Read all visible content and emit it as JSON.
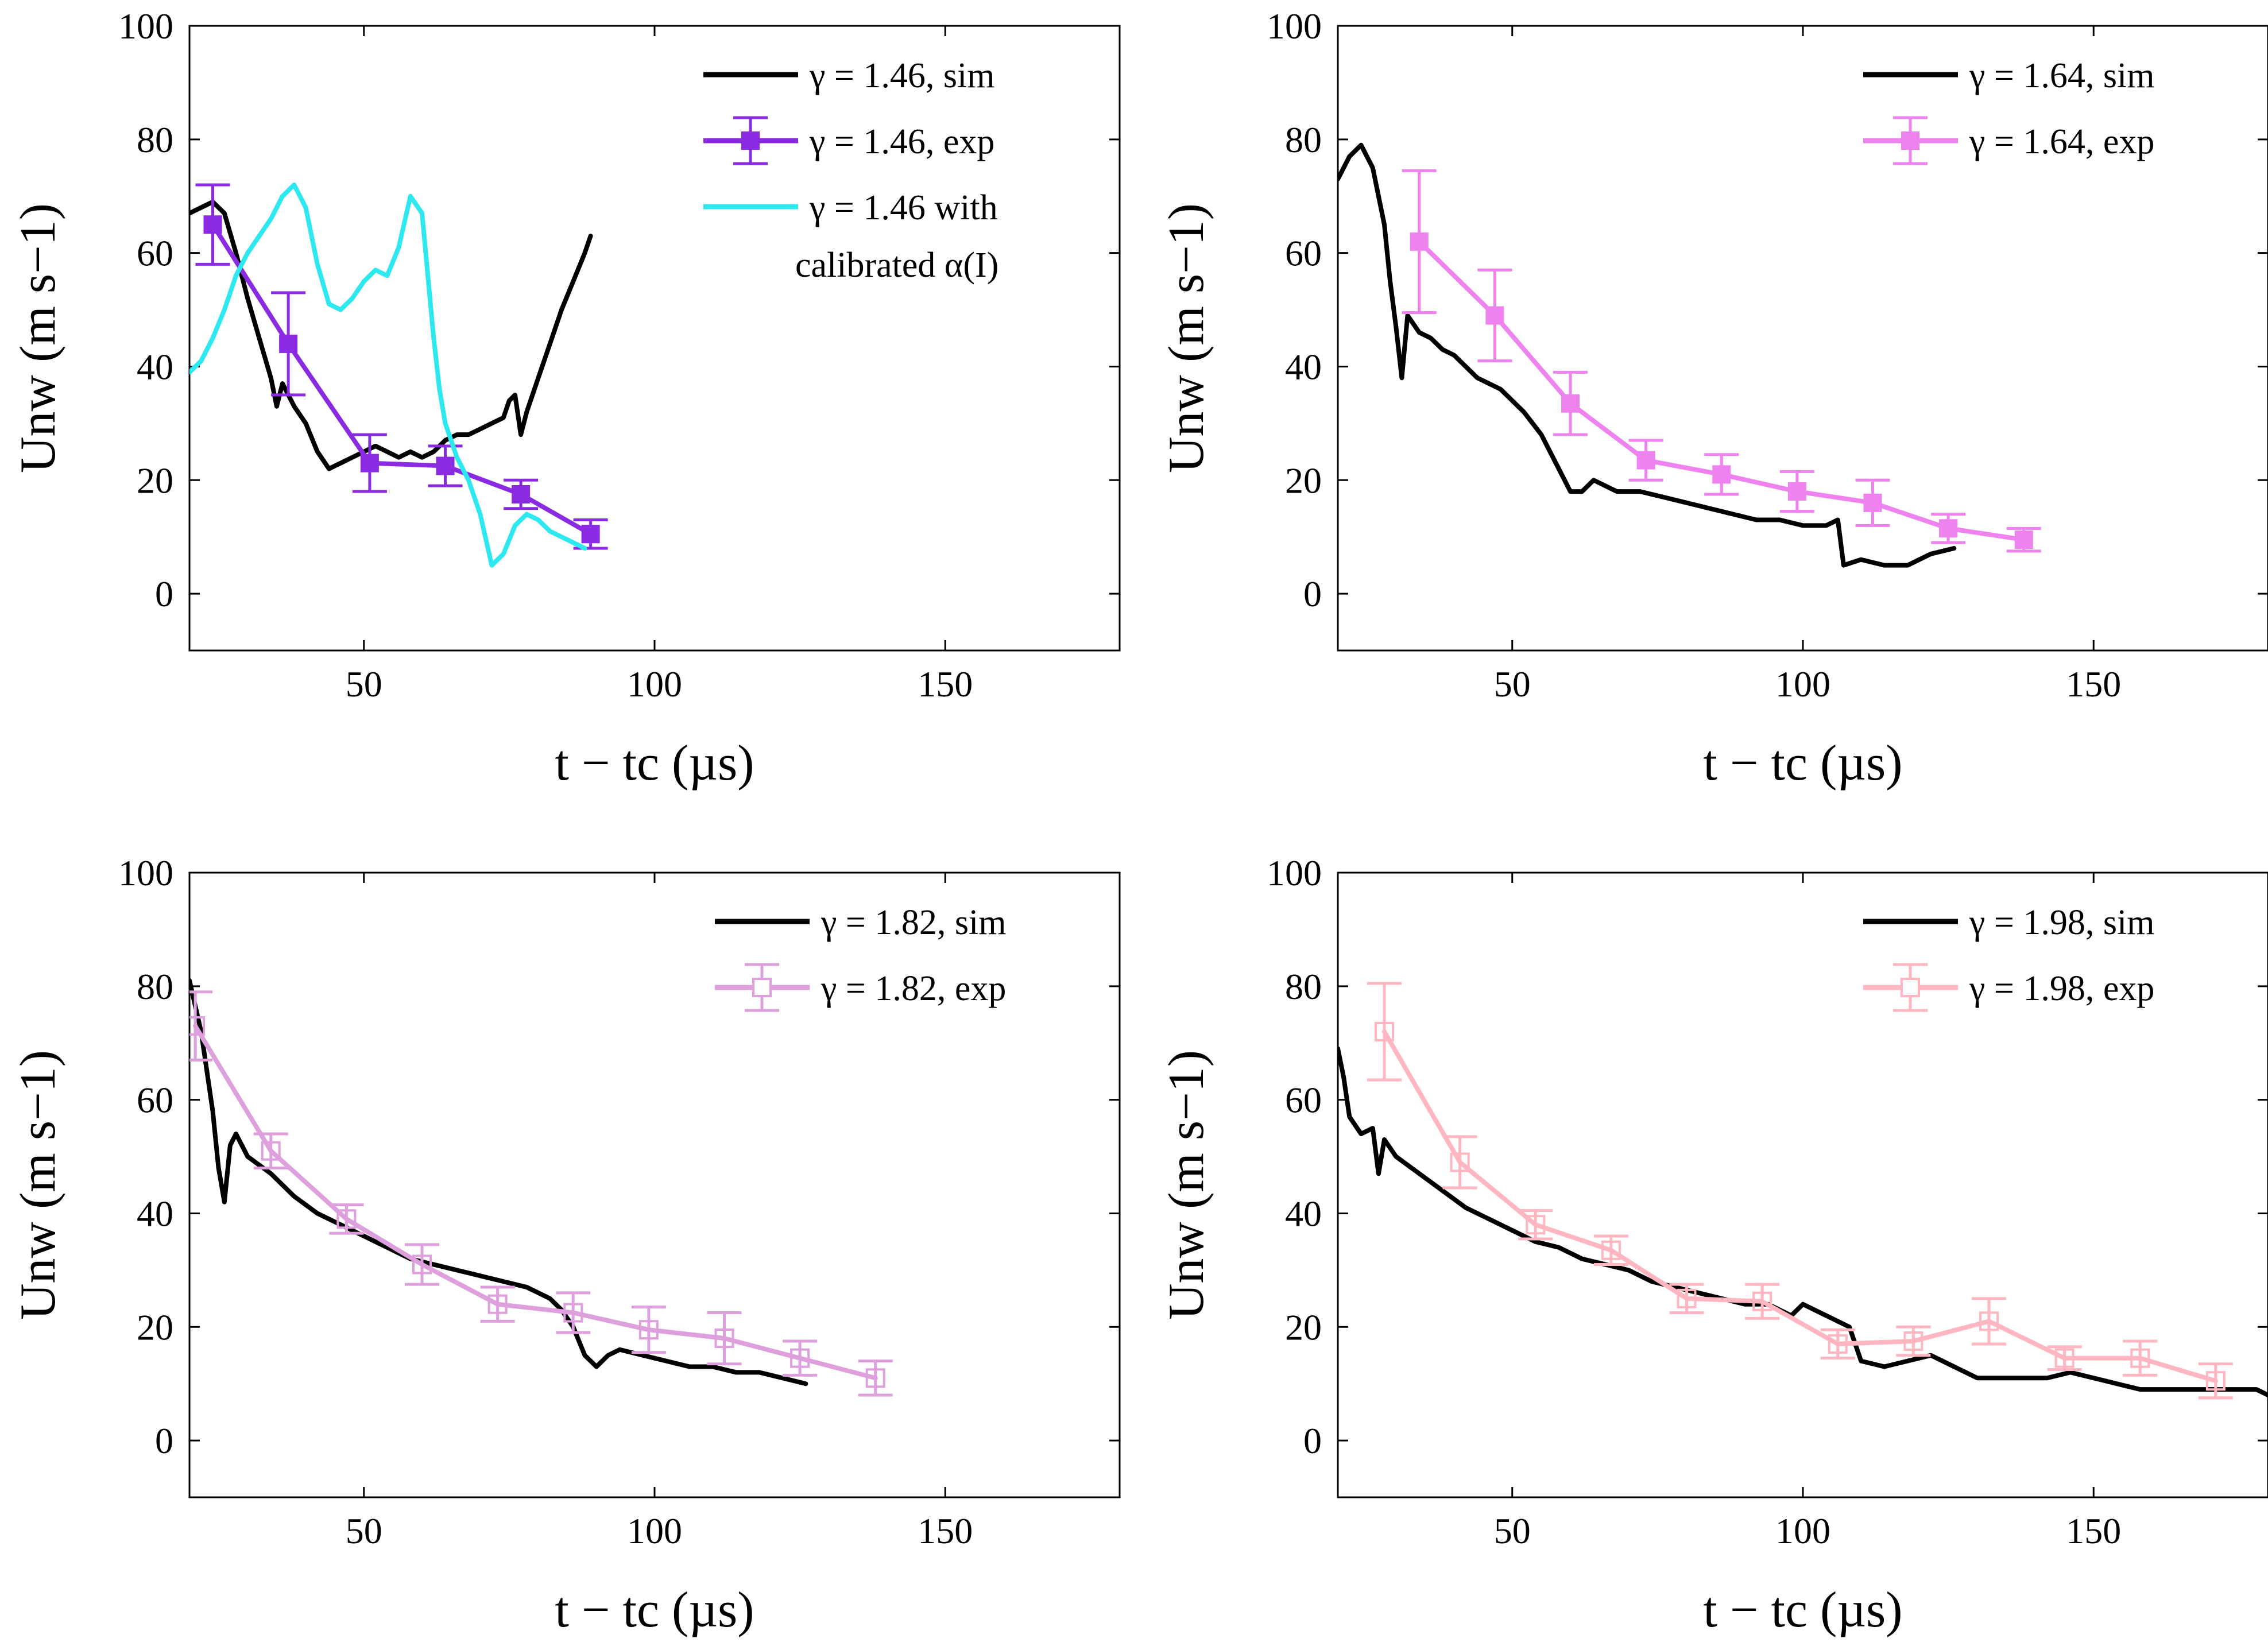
{
  "chart_data": [
    {
      "type": "line",
      "xlabel": "t − tc (µs)",
      "ylabel": "Unw (m s−1)",
      "xlim": [
        20,
        180
      ],
      "ylim": [
        -10,
        100
      ],
      "xticks": [
        "50",
        "100",
        "150"
      ],
      "yticks": [
        "0",
        "20",
        "40",
        "60",
        "80",
        "100"
      ],
      "legend_position": "top-right",
      "series": [
        {
          "name": "γ = 1.46, sim",
          "color": "#000000",
          "style": "line",
          "x": [
            20,
            22,
            24,
            26,
            28,
            30,
            32,
            34,
            35,
            36,
            38,
            40,
            42,
            44,
            46,
            48,
            50,
            52,
            54,
            56,
            58,
            60,
            62,
            64,
            66,
            68,
            70,
            72,
            74,
            75,
            76,
            77,
            78,
            80,
            82,
            84,
            86,
            88,
            89
          ],
          "y": [
            67,
            68,
            69,
            67,
            60,
            52,
            45,
            38,
            33,
            37,
            33,
            30,
            25,
            22,
            23,
            24,
            25,
            26,
            25,
            24,
            25,
            24,
            25,
            27,
            28,
            28,
            29,
            30,
            31,
            34,
            35,
            28,
            32,
            38,
            44,
            50,
            55,
            60,
            63
          ]
        },
        {
          "name": "γ = 1.46, exp",
          "color": "#8a2be2",
          "style": "line-filled-square-errorbar",
          "x": [
            24,
            37,
            51,
            64,
            77,
            89
          ],
          "y": [
            65,
            44,
            23,
            22.5,
            17.5,
            10.5
          ],
          "err": [
            7,
            9,
            5,
            3.5,
            2.5,
            2.5
          ]
        },
        {
          "name": "γ = 1.46 with calibrated α(I)",
          "color": "#2de8ef",
          "style": "line",
          "x": [
            20,
            22,
            24,
            26,
            28,
            30,
            32,
            34,
            36,
            38,
            40,
            42,
            44,
            46,
            48,
            50,
            52,
            54,
            56,
            58,
            60,
            62,
            63,
            64,
            66,
            68,
            70,
            72,
            74,
            76,
            78,
            80,
            82,
            84,
            86,
            88
          ],
          "y": [
            39,
            41,
            45,
            50,
            56,
            60,
            63,
            66,
            70,
            72,
            68,
            58,
            51,
            50,
            52,
            55,
            57,
            56,
            61,
            70,
            67,
            45,
            36,
            30,
            24,
            20,
            14,
            5,
            7,
            12,
            14,
            13,
            11,
            10,
            9,
            8
          ]
        }
      ]
    },
    {
      "type": "line",
      "xlabel": "t − tc (µs)",
      "ylabel": "Unw (m s−1)",
      "xlim": [
        20,
        180
      ],
      "ylim": [
        -10,
        100
      ],
      "xticks": [
        "50",
        "100",
        "150"
      ],
      "yticks": [
        "0",
        "20",
        "40",
        "60",
        "80",
        "100"
      ],
      "legend_position": "top-right",
      "series": [
        {
          "name": "γ = 1.64, sim",
          "color": "#000000",
          "style": "line",
          "x": [
            20,
            22,
            24,
            26,
            28,
            29,
            30,
            31,
            32,
            34,
            36,
            38,
            40,
            44,
            48,
            52,
            55,
            58,
            60,
            62,
            64,
            68,
            72,
            76,
            80,
            84,
            88,
            92,
            96,
            100,
            104,
            106,
            107,
            110,
            114,
            118,
            122,
            126
          ],
          "y": [
            73,
            77,
            79,
            75,
            65,
            55,
            47,
            38,
            49,
            46,
            45,
            43,
            42,
            38,
            36,
            32,
            28,
            22,
            18,
            18,
            20,
            18,
            18,
            17,
            16,
            15,
            14,
            13,
            13,
            12,
            12,
            13,
            5,
            6,
            5,
            5,
            7,
            8
          ]
        },
        {
          "name": "γ = 1.64, exp",
          "color": "#ee82ee",
          "style": "line-filled-square-errorbar",
          "x": [
            34,
            47,
            60,
            73,
            86,
            99,
            112,
            125,
            138
          ],
          "y": [
            62,
            49,
            33.5,
            23.5,
            21,
            18,
            16,
            11.5,
            9.5
          ],
          "err": [
            12.5,
            8,
            5.5,
            3.5,
            3.5,
            3.5,
            4,
            2.5,
            2
          ]
        }
      ]
    },
    {
      "type": "line",
      "xlabel": "t − tc (µs)",
      "ylabel": "Unw (m s−1)",
      "xlim": [
        20,
        180
      ],
      "ylim": [
        -10,
        100
      ],
      "xticks": [
        "50",
        "100",
        "150"
      ],
      "yticks": [
        "0",
        "20",
        "40",
        "60",
        "80",
        "100"
      ],
      "legend_position": "top-right",
      "series": [
        {
          "name": "γ = 1.82, sim",
          "color": "#000000",
          "style": "line",
          "x": [
            20,
            22,
            24,
            25,
            26,
            27,
            28,
            30,
            34,
            38,
            42,
            46,
            50,
            54,
            58,
            62,
            66,
            70,
            74,
            78,
            82,
            84,
            86,
            88,
            90,
            92,
            94,
            98,
            102,
            106,
            110,
            114,
            118,
            122,
            126
          ],
          "y": [
            81,
            72,
            58,
            48,
            42,
            52,
            54,
            50,
            47,
            43,
            40,
            38,
            36,
            34,
            32,
            31,
            30,
            29,
            28,
            27,
            25,
            23,
            20,
            15,
            13,
            15,
            16,
            15,
            14,
            13,
            13,
            12,
            12,
            11,
            10
          ]
        },
        {
          "name": "γ = 1.82, exp",
          "color": "#dda0dd",
          "style": "line-open-square-errorbar",
          "x": [
            21,
            34,
            47,
            60,
            73,
            86,
            99,
            112,
            125,
            138
          ],
          "y": [
            73,
            51,
            39,
            31,
            24,
            22.5,
            19.5,
            18,
            14.5,
            11
          ],
          "err": [
            6,
            3,
            2.5,
            3.5,
            3,
            3.5,
            4,
            4.5,
            3,
            3
          ]
        }
      ]
    },
    {
      "type": "line",
      "xlabel": "t − tc (µs)",
      "ylabel": "Unw (m s−1)",
      "xlim": [
        20,
        180
      ],
      "ylim": [
        -10,
        100
      ],
      "xticks": [
        "50",
        "100",
        "150"
      ],
      "yticks": [
        "0",
        "20",
        "40",
        "60",
        "80",
        "100"
      ],
      "legend_position": "top-right",
      "series": [
        {
          "name": "γ = 1.98, sim",
          "color": "#000000",
          "style": "line",
          "x": [
            20,
            21,
            22,
            24,
            26,
            27,
            28,
            30,
            34,
            38,
            42,
            46,
            50,
            54,
            58,
            62,
            66,
            70,
            74,
            78,
            82,
            86,
            90,
            94,
            98,
            100,
            104,
            108,
            110,
            114,
            118,
            122,
            126,
            130,
            134,
            138,
            142,
            146,
            150,
            154,
            158,
            162,
            166,
            170,
            174,
            178,
            180
          ],
          "y": [
            69,
            64,
            57,
            54,
            55,
            47,
            53,
            50,
            47,
            44,
            41,
            39,
            37,
            35,
            34,
            32,
            31,
            30,
            28,
            27,
            26,
            25,
            24,
            24,
            22,
            24,
            22,
            20,
            14,
            13,
            14,
            15,
            13,
            11,
            11,
            11,
            11,
            12,
            11,
            10,
            9,
            9,
            9,
            9,
            9,
            9,
            8
          ]
        },
        {
          "name": "γ = 1.98, exp",
          "color": "#ffb6c1",
          "style": "line-open-square-errorbar",
          "x": [
            28,
            41,
            54,
            67,
            80,
            93,
            106,
            119,
            132,
            145,
            158,
            171
          ],
          "y": [
            72,
            49,
            38,
            33.5,
            25,
            24.5,
            17,
            17.5,
            21,
            14.5,
            14.5,
            10.5
          ],
          "err": [
            8.5,
            4.5,
            2.5,
            2.5,
            2.5,
            3,
            2.5,
            2.5,
            4,
            2,
            3,
            3
          ]
        }
      ]
    }
  ]
}
